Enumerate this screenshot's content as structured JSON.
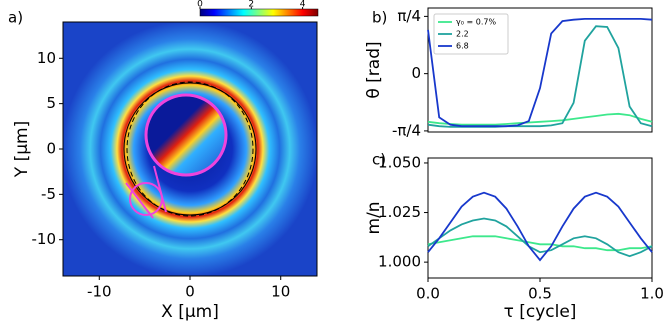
{
  "chart_data": [
    {
      "type": "heatmap",
      "panel_label": "a)",
      "xlabel": "X [μm]",
      "ylabel": "Y [μm]",
      "xlim": [
        -14,
        14
      ],
      "ylim": [
        -14,
        14
      ],
      "xticks": [
        -10,
        0,
        10
      ],
      "yticks": [
        -10,
        -5,
        0,
        5,
        10
      ],
      "clim": [
        0,
        4.6
      ],
      "cticks": [
        0,
        2,
        4
      ],
      "colormap": "jet"
    },
    {
      "type": "line",
      "panel_label": "b)",
      "ylabel": "θ [rad]",
      "x": [
        0,
        0.05,
        0.1,
        0.15,
        0.2,
        0.25,
        0.3,
        0.35,
        0.4,
        0.45,
        0.5,
        0.55,
        0.6,
        0.65,
        0.7,
        0.75,
        0.8,
        0.85,
        0.9,
        0.95,
        1.0
      ],
      "xlim": [
        0,
        1
      ],
      "ylim": [
        -0.8,
        0.9
      ],
      "yticks": [
        {
          "value": -0.785,
          "label": "-π/4"
        },
        0,
        {
          "value": 0.785,
          "label": "π/4"
        }
      ],
      "legend": "upper left",
      "series": [
        {
          "name": "γ₀ = 0.7%",
          "color": "#3de88c",
          "values": [
            -0.66,
            -0.68,
            -0.69,
            -0.7,
            -0.7,
            -0.7,
            -0.7,
            -0.69,
            -0.68,
            -0.67,
            -0.66,
            -0.65,
            -0.64,
            -0.62,
            -0.6,
            -0.58,
            -0.56,
            -0.55,
            -0.57,
            -0.62,
            -0.66
          ]
        },
        {
          "name": "2.2",
          "color": "#20a39e",
          "values": [
            -0.7,
            -0.72,
            -0.73,
            -0.73,
            -0.73,
            -0.73,
            -0.73,
            -0.72,
            -0.72,
            -0.72,
            -0.72,
            -0.71,
            -0.68,
            -0.4,
            0.45,
            0.65,
            0.64,
            0.35,
            -0.45,
            -0.68,
            -0.72
          ]
        },
        {
          "name": "6.8",
          "color": "#1838cc",
          "values": [
            0.6,
            -0.6,
            -0.7,
            -0.72,
            -0.72,
            -0.72,
            -0.72,
            -0.72,
            -0.71,
            -0.65,
            -0.2,
            0.55,
            0.72,
            0.74,
            0.75,
            0.75,
            0.75,
            0.75,
            0.75,
            0.75,
            0.74
          ]
        }
      ]
    },
    {
      "type": "line",
      "panel_label": "c)",
      "ylabel": "m/n",
      "xlabel": "τ [cycle]",
      "x": [
        0,
        0.05,
        0.1,
        0.15,
        0.2,
        0.25,
        0.3,
        0.35,
        0.4,
        0.45,
        0.5,
        0.55,
        0.6,
        0.65,
        0.7,
        0.75,
        0.8,
        0.85,
        0.9,
        0.95,
        1.0
      ],
      "xlim": [
        0,
        1
      ],
      "ylim": [
        0.992,
        1.0525
      ],
      "xticks": [
        {
          "value": 0,
          "label": "0.0"
        },
        0.5,
        {
          "value": 1,
          "label": "1.0"
        }
      ],
      "yticks": [
        {
          "value": 1,
          "label": "1.000"
        },
        1.025,
        {
          "value": 1.05,
          "label": "1.050"
        }
      ],
      "series": [
        {
          "color": "#3de88c",
          "values": [
            1.009,
            1.01,
            1.011,
            1.012,
            1.013,
            1.013,
            1.013,
            1.012,
            1.011,
            1.01,
            1.009,
            1.009,
            1.008,
            1.008,
            1.007,
            1.007,
            1.006,
            1.006,
            1.007,
            1.007,
            1.008
          ]
        },
        {
          "color": "#20a39e",
          "values": [
            1.008,
            1.012,
            1.016,
            1.019,
            1.021,
            1.022,
            1.021,
            1.018,
            1.013,
            1.008,
            1.005,
            1.006,
            1.009,
            1.012,
            1.013,
            1.012,
            1.009,
            1.005,
            1.003,
            1.005,
            1.008
          ]
        },
        {
          "color": "#1838cc",
          "values": [
            1.005,
            1.012,
            1.02,
            1.028,
            1.033,
            1.035,
            1.033,
            1.027,
            1.018,
            1.008,
            1.001,
            1.008,
            1.018,
            1.027,
            1.033,
            1.035,
            1.033,
            1.028,
            1.02,
            1.012,
            1.005
          ]
        }
      ]
    }
  ]
}
